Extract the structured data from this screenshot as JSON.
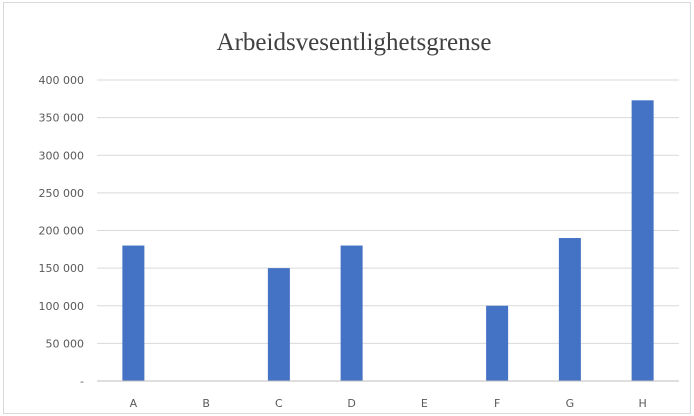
{
  "chart_data": {
    "type": "bar",
    "title": "Arbeidsvesentlighetsgrense",
    "categories": [
      "A",
      "B",
      "C",
      "D",
      "E",
      "F",
      "G",
      "H"
    ],
    "values": [
      180000,
      0,
      150000,
      180000,
      0,
      100000,
      190000,
      373000
    ],
    "y_tick_labels": [
      "-",
      "50 000",
      "100 000",
      "150 000",
      "200 000",
      "250 000",
      "300 000",
      "350 000",
      "400 000"
    ],
    "ylim": [
      0,
      400000
    ],
    "grid": true,
    "legend": "none",
    "colors": {
      "bar": "#4472c4",
      "grid": "#d9d9d9",
      "axis": "#bfbfbf",
      "text": "#595959"
    }
  }
}
